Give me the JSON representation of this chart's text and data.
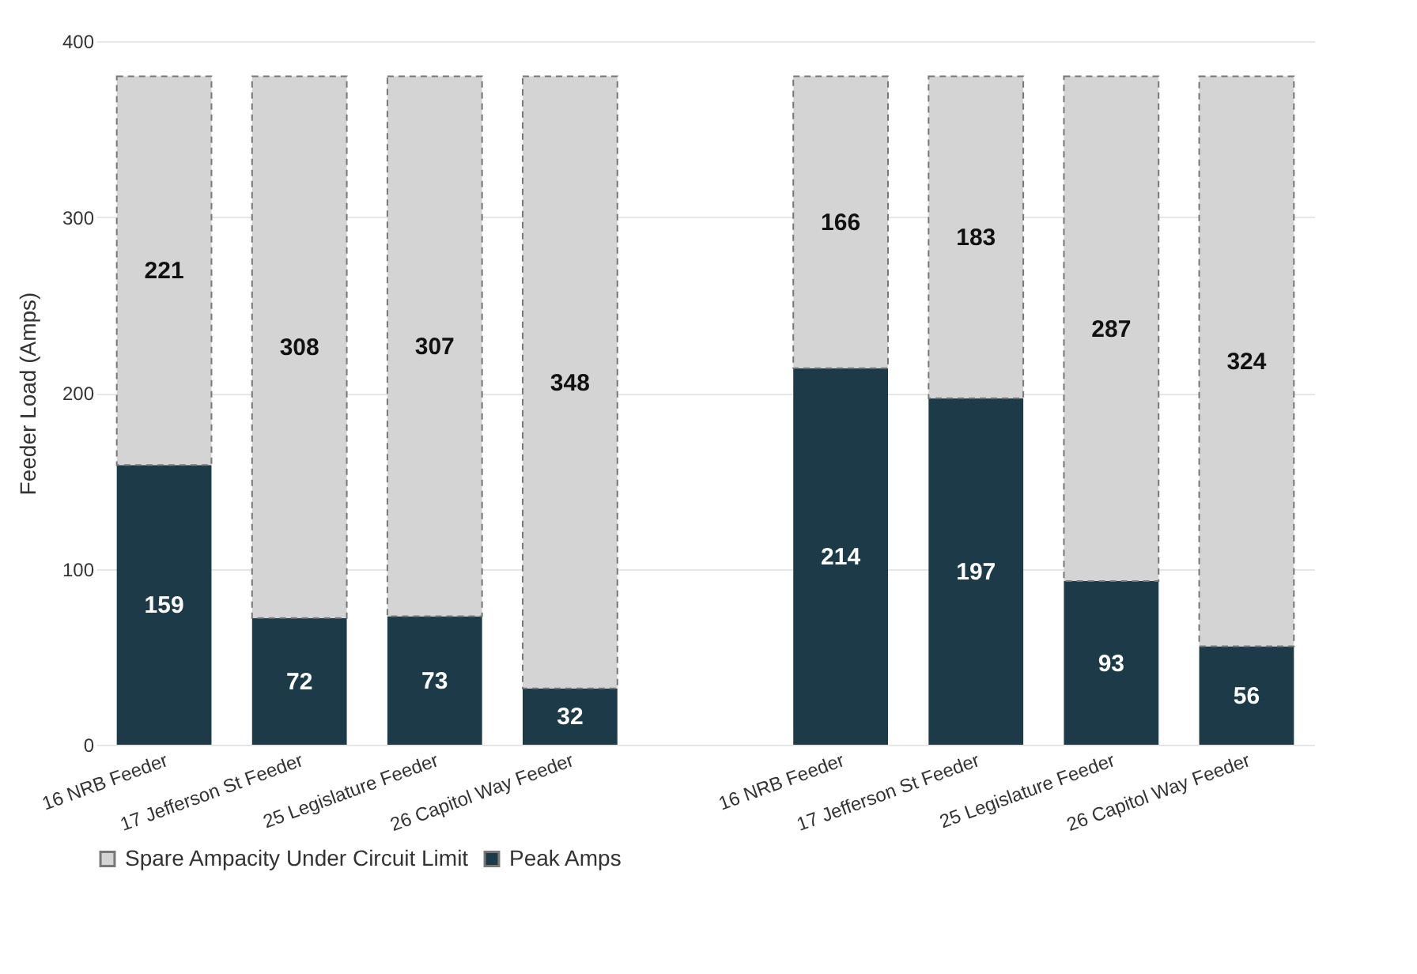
{
  "chart_data": {
    "type": "bar",
    "ylabel": "Feeder Load (Amps)",
    "stacked": true,
    "data_labels": true,
    "grid": "y",
    "legend": "bottom",
    "ylim": [
      0,
      400
    ],
    "yticks": [
      0,
      100,
      200,
      300,
      400
    ],
    "categories": [
      "16 NRB Feeder",
      "17 Jefferson St Feeder",
      "25 Legislature Feeder",
      "26 Capitol Way Feeder",
      null,
      "16 NRB Feeder",
      "17 Jefferson St Feeder",
      "25 Legislature Feeder",
      "26 Capitol Way Feeder"
    ],
    "series": [
      {
        "name": "Peak Amps",
        "color": "#1d3a48",
        "values": [
          159,
          72,
          73,
          32,
          null,
          214,
          197,
          93,
          56
        ]
      },
      {
        "name": "Spare Ampacity Under Circuit Limit",
        "color": "#d4d4d4",
        "line_style": "dashed",
        "values": [
          221,
          308,
          307,
          348,
          null,
          166,
          183,
          287,
          324
        ]
      }
    ]
  }
}
